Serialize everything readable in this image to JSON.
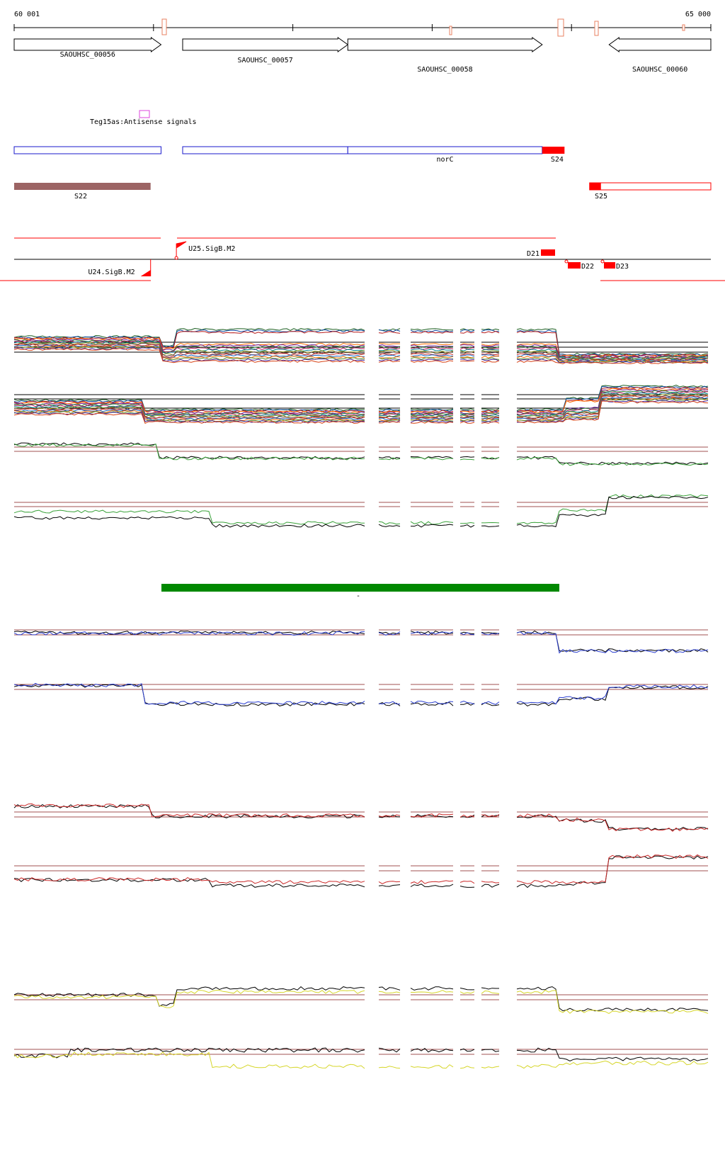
{
  "coords": {
    "start": "60 001",
    "end": "65 000",
    "start_bp": 60001,
    "end_bp": 65000
  },
  "genes": [
    {
      "name": "SAOUHSC_00056",
      "strand": "+",
      "start_bp": 60001,
      "end_bp": 61055
    },
    {
      "name": "SAOUHSC_00057",
      "strand": "+",
      "start_bp": 61210,
      "end_bp": 62395
    },
    {
      "name": "SAOUHSC_00058",
      "strand": "+",
      "start_bp": 62395,
      "end_bp": 63790
    },
    {
      "name": "SAOUHSC_00060",
      "strand": "-",
      "start_bp": 64270,
      "end_bp": 65000
    }
  ],
  "antisense": {
    "label": "Teg15as:Antisense signals"
  },
  "blue_features": [
    {
      "start_bp": 60001,
      "end_bp": 61055,
      "label": ""
    },
    {
      "start_bp": 61210,
      "end_bp": 62395,
      "label": ""
    },
    {
      "start_bp": 62395,
      "end_bp": 63790,
      "label": "norC"
    }
  ],
  "segments": [
    {
      "label": "S24",
      "start_bp": 63790,
      "end_bp": 63950,
      "color": "#ff0000"
    },
    {
      "label": "S22",
      "start_bp": 60001,
      "end_bp": 60980,
      "color": "#9c6464"
    },
    {
      "label": "S25",
      "start_bp": 64130,
      "end_bp": 65000,
      "color": "#ff0000"
    }
  ],
  "promoters": [
    {
      "label": "U25.SigB.M2",
      "strand": "+",
      "pos_bp": 61165
    },
    {
      "label": "U24.SigB.M2",
      "strand": "-",
      "pos_bp": 60980
    }
  ],
  "terminators": [
    {
      "label": "D21",
      "strand": "+",
      "pos_bp": 63710
    },
    {
      "label": "D22",
      "strand": "-",
      "pos_bp": 63870
    },
    {
      "label": "D23",
      "strand": "-",
      "pos_bp": 64130
    }
  ],
  "condition_bar": {
    "label": "-"
  },
  "colors": {
    "gene_outline": "#000000",
    "blue": "#1a1acc",
    "red": "#ff0000",
    "brown": "#9c6464",
    "green_bar": "#008800",
    "magenta": "#dd44dd",
    "ref_line": "#a05050",
    "profile_green": "#3aa23a",
    "profile_blue": "#2b3fd0",
    "profile_red": "#cc2a2a",
    "profile_yellow": "#d6d62a"
  }
}
